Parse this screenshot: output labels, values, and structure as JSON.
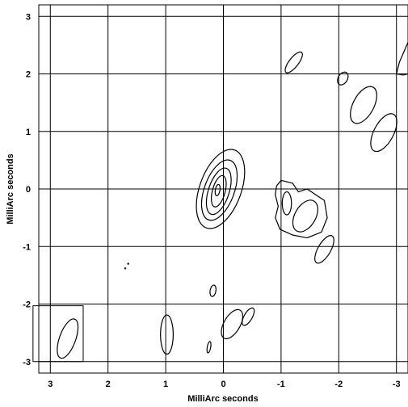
{
  "chart_data": {
    "type": "contour",
    "xlabel": "MilliArc seconds",
    "ylabel": "MilliArc seconds",
    "xlim": [
      3.2,
      -3.2
    ],
    "ylim": [
      -3.2,
      3.2
    ],
    "xticks": [
      3,
      2,
      1,
      0,
      -1,
      -2,
      -3
    ],
    "yticks": [
      3,
      2,
      1,
      0,
      -1,
      -2,
      -3
    ],
    "x_tick_labels": [
      "3",
      "2",
      "1",
      "0",
      "-1",
      "-2",
      "-3"
    ],
    "y_tick_labels": [
      "3",
      "2",
      "1",
      "0",
      "-1",
      "-2",
      "-3"
    ],
    "grid": true,
    "beam": {
      "x": 2.7,
      "y": -2.6,
      "semi_major": 0.36,
      "semi_minor": 0.14,
      "pa": 20,
      "box": [
        3.3,
        2.43,
        -3.0,
        -2.03
      ]
    },
    "contours": [
      {
        "x": 0.05,
        "y": 0.0,
        "rx": 0.36,
        "ry": 0.72,
        "rot": 20
      },
      {
        "x": 0.07,
        "y": -0.02,
        "rx": 0.26,
        "ry": 0.55,
        "rot": 20
      },
      {
        "x": 0.08,
        "y": -0.04,
        "rx": 0.18,
        "ry": 0.42,
        "rot": 18
      },
      {
        "x": 0.08,
        "y": -0.04,
        "rx": 0.11,
        "ry": 0.28,
        "rot": 15
      },
      {
        "x": 0.1,
        "y": -0.02,
        "rx": 0.04,
        "ry": 0.1,
        "rot": 10
      },
      {
        "x": -1.1,
        "y": -0.25,
        "rx": 0.08,
        "ry": 0.2,
        "rot": 0
      },
      {
        "x": -1.42,
        "y": -0.47,
        "rx": 0.18,
        "ry": 0.3,
        "rot": 30
      },
      {
        "x": -1.75,
        "y": -1.05,
        "rx": 0.11,
        "ry": 0.27,
        "rot": 30
      },
      {
        "x": -1.22,
        "y": 2.2,
        "rx": 0.08,
        "ry": 0.22,
        "rot": 38
      },
      {
        "x": -2.07,
        "y": 1.92,
        "rx": 0.08,
        "ry": 0.12,
        "rot": 30
      },
      {
        "x": -2.43,
        "y": 1.46,
        "rx": 0.18,
        "ry": 0.35,
        "rot": 28
      },
      {
        "x": -2.78,
        "y": 0.98,
        "rx": 0.17,
        "ry": 0.36,
        "rot": 28
      },
      {
        "x": 0.98,
        "y": -2.53,
        "rx": 0.11,
        "ry": 0.34,
        "rot": 0
      },
      {
        "x": 0.18,
        "y": -1.77,
        "rx": 0.05,
        "ry": 0.1,
        "rot": 10
      },
      {
        "x": -0.15,
        "y": -2.35,
        "rx": 0.14,
        "ry": 0.28,
        "rot": 30
      },
      {
        "x": -0.43,
        "y": -2.22,
        "rx": 0.07,
        "ry": 0.17,
        "rot": 30
      },
      {
        "x": 0.25,
        "y": -2.75,
        "rx": 0.03,
        "ry": 0.1,
        "rot": 10
      }
    ],
    "complex_contours": [
      {
        "points": [
          [
            -0.92,
            0.05
          ],
          [
            -1.0,
            0.15
          ],
          [
            -1.2,
            0.1
          ],
          [
            -1.3,
            -0.05
          ],
          [
            -1.45,
            0.0
          ],
          [
            -1.6,
            -0.1
          ],
          [
            -1.75,
            -0.2
          ],
          [
            -1.8,
            -0.5
          ],
          [
            -1.7,
            -0.75
          ],
          [
            -1.45,
            -0.85
          ],
          [
            -1.2,
            -0.8
          ],
          [
            -0.98,
            -0.7
          ],
          [
            -0.9,
            -0.5
          ],
          [
            -0.95,
            -0.3
          ],
          [
            -0.9,
            -0.1
          ],
          [
            -0.92,
            0.05
          ]
        ]
      },
      {
        "points": [
          [
            -3.0,
            2.0
          ],
          [
            -3.05,
            2.2
          ],
          [
            -3.2,
            2.55
          ]
        ]
      },
      {
        "points": [
          [
            -3.0,
            2.0
          ],
          [
            -3.12,
            1.98
          ],
          [
            -3.2,
            2.0
          ]
        ]
      }
    ],
    "markers": [
      {
        "x": 1.65,
        "y": -1.3
      },
      {
        "x": 1.7,
        "y": -1.38
      }
    ]
  }
}
